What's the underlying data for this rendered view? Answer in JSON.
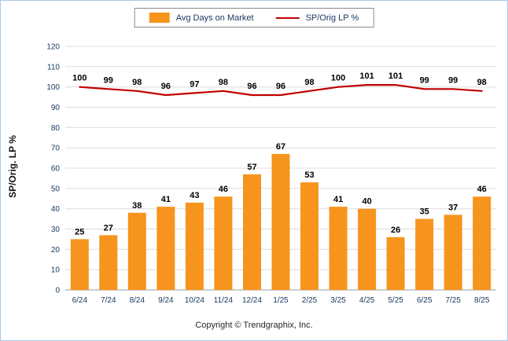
{
  "chart_data": {
    "type": "bar+line",
    "categories": [
      "6/24",
      "7/24",
      "8/24",
      "9/24",
      "10/24",
      "11/24",
      "12/24",
      "1/25",
      "2/25",
      "3/25",
      "4/25",
      "5/25",
      "6/25",
      "7/25",
      "8/25"
    ],
    "series": [
      {
        "name": "Avg Days on Market",
        "type": "bar",
        "color": "#f7941d",
        "values": [
          25,
          27,
          38,
          41,
          43,
          46,
          57,
          67,
          53,
          41,
          40,
          26,
          35,
          37,
          46
        ]
      },
      {
        "name": "SP/Orig LP %",
        "type": "line",
        "color": "#c00000",
        "values": [
          100,
          99,
          98,
          96,
          97,
          98,
          96,
          96,
          98,
          100,
          101,
          101,
          99,
          99,
          98
        ]
      }
    ],
    "ylabel": "SP/Orig. LP %",
    "xlabel": "",
    "ylim": [
      0,
      120
    ],
    "ytick_step": 10,
    "grid": true,
    "legend_position": "top"
  },
  "footer": {
    "copyright": "Copyright © Trendgraphix, Inc."
  },
  "colors": {
    "background": "#ffffff",
    "frame_border": "#a9c9e8",
    "grid": "#dcdcdc",
    "axis_line": "#9e9e9e",
    "tick_text": "#17375e",
    "value_label": "#000000"
  }
}
